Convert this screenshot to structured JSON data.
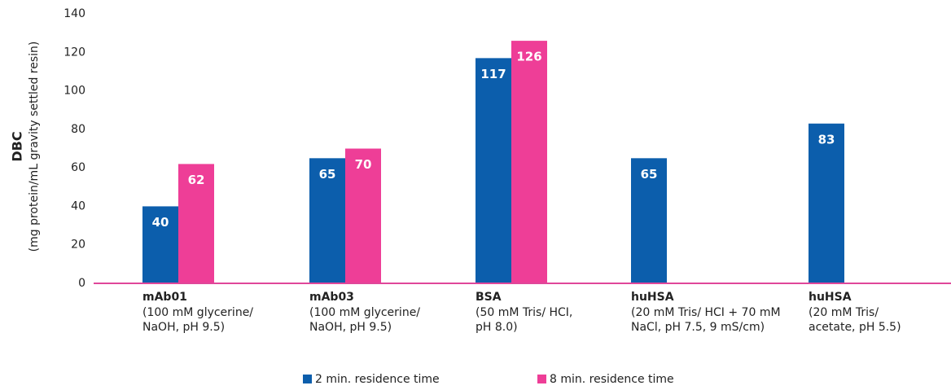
{
  "chart_data": {
    "type": "bar",
    "y_label": "DBC",
    "y_sublabel": "(mg protein/mL gravity settled resin)",
    "categories": [
      "mAb01",
      "mAb03",
      "BSA",
      "huHSA",
      "huHSA"
    ],
    "category_notes": [
      [
        "(100 mM glycerine/",
        "NaOH, pH 9.5)"
      ],
      [
        "(100 mM glycerine/",
        "NaOH, pH 9.5)"
      ],
      [
        "(50 mM Tris/ HCI,",
        "pH 8.0)"
      ],
      [
        "(20 mM Tris/ HCI + 70 mM",
        "NaCl, pH 7.5, 9 mS/cm)"
      ],
      [
        "(20 mM Tris/",
        "acetate, pH 5.5)"
      ]
    ],
    "series": [
      {
        "name": "2 min. residence time",
        "color": "#0c5eac",
        "values": [
          40,
          65,
          117,
          65,
          83
        ]
      },
      {
        "name": "8 min. residence time",
        "color": "#ee3e97",
        "values": [
          62,
          70,
          126,
          null,
          null
        ]
      }
    ],
    "ylim": [
      0,
      140
    ],
    "yticks": [
      0,
      20,
      40,
      60,
      80,
      100,
      120,
      140
    ],
    "axis_color": "#e0479a",
    "grid": false,
    "legend": "bottom"
  }
}
